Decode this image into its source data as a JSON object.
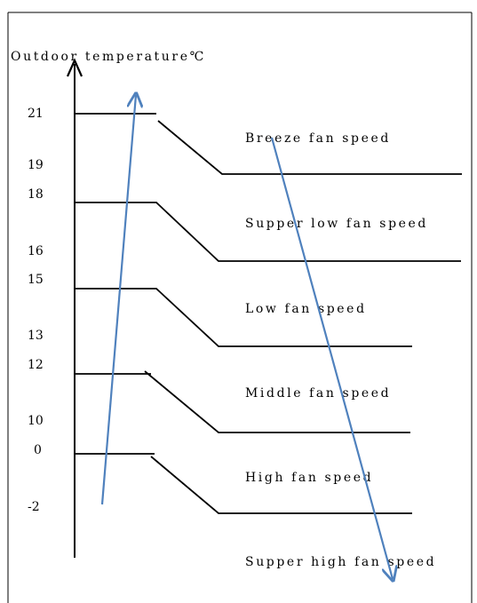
{
  "diagram": {
    "axis_title": "Outdoor temperature℃",
    "ticks": [
      "21",
      "19",
      "18",
      "16",
      "15",
      "13",
      "12",
      "10",
      "0",
      "-2"
    ],
    "bands": [
      {
        "label": "Breeze fan speed",
        "upper_threshold": "21",
        "lower_threshold": "19"
      },
      {
        "label": "Supper low fan speed",
        "upper_threshold": "18",
        "lower_threshold": "16"
      },
      {
        "label": "Low fan speed",
        "upper_threshold": "15",
        "lower_threshold": "13"
      },
      {
        "label": "Middle fan speed",
        "upper_threshold": "12",
        "lower_threshold": "10"
      },
      {
        "label": "High fan speed",
        "upper_threshold": "0",
        "lower_threshold": "-2"
      }
    ],
    "bottom_label": "Supper high fan speed",
    "colors": {
      "line": "#000000",
      "arrow": "#4f81bd",
      "background": "#ffffff"
    }
  }
}
